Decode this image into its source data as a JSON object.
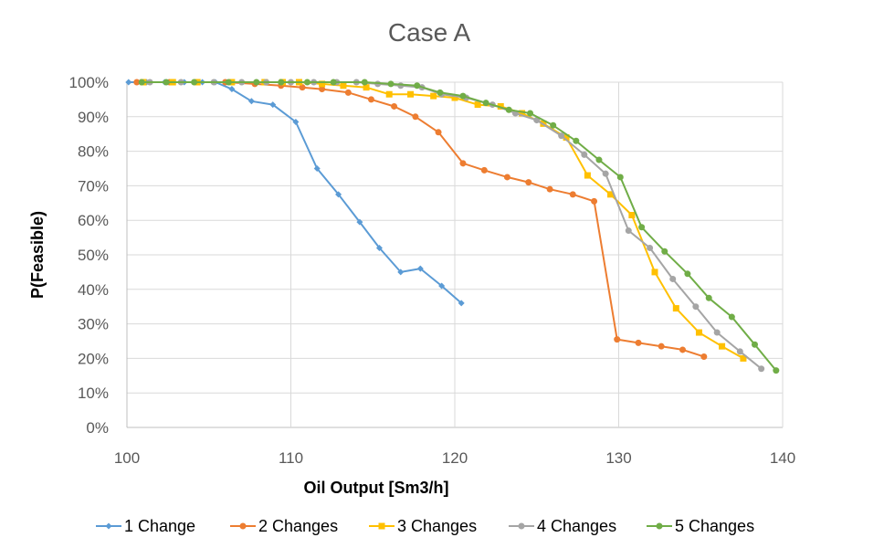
{
  "chart_data": {
    "type": "line",
    "title": "Case A",
    "xlabel": "Oil Output [Sm3/h]",
    "ylabel": "P(Feasible)",
    "xlim": [
      100,
      140
    ],
    "ylim": [
      0,
      100
    ],
    "x_ticks": [
      "100",
      "110",
      "120",
      "130",
      "140"
    ],
    "y_ticks": [
      "0%",
      "10%",
      "20%",
      "30%",
      "40%",
      "50%",
      "60%",
      "70%",
      "80%",
      "90%",
      "100%"
    ],
    "grid": true,
    "legend_position": "bottom",
    "series": [
      {
        "name": "1 Change",
        "color": "#5B9BD5",
        "marker": "diamond",
        "points": [
          [
            100.1,
            100
          ],
          [
            101.2,
            100
          ],
          [
            102.3,
            100
          ],
          [
            103.5,
            100
          ],
          [
            104.6,
            100
          ],
          [
            105.4,
            100
          ],
          [
            106.4,
            98
          ],
          [
            107.6,
            94.5
          ],
          [
            108.9,
            93.5
          ],
          [
            110.3,
            88.5
          ],
          [
            111.6,
            75
          ],
          [
            112.9,
            67.5
          ],
          [
            114.2,
            59.5
          ],
          [
            115.4,
            52
          ],
          [
            116.7,
            45
          ],
          [
            117.9,
            46
          ],
          [
            119.2,
            41
          ],
          [
            120.4,
            36
          ]
        ]
      },
      {
        "name": "2 Changes",
        "color": "#ED7D31",
        "marker": "circle",
        "points": [
          [
            100.6,
            100
          ],
          [
            102.6,
            100
          ],
          [
            104.3,
            100
          ],
          [
            106.0,
            100
          ],
          [
            107.8,
            99.5
          ],
          [
            109.4,
            99
          ],
          [
            110.7,
            98.5
          ],
          [
            111.9,
            98
          ],
          [
            113.5,
            97
          ],
          [
            114.9,
            95
          ],
          [
            116.3,
            93
          ],
          [
            117.6,
            90
          ],
          [
            119.0,
            85.5
          ],
          [
            120.5,
            76.5
          ],
          [
            121.8,
            74.5
          ],
          [
            123.2,
            72.5
          ],
          [
            124.5,
            71
          ],
          [
            125.8,
            69
          ],
          [
            127.2,
            67.5
          ],
          [
            128.5,
            65.5
          ],
          [
            129.9,
            25.5
          ],
          [
            131.2,
            24.5
          ],
          [
            132.6,
            23.5
          ],
          [
            133.9,
            22.5
          ],
          [
            135.2,
            20.5
          ]
        ]
      },
      {
        "name": "3 Changes",
        "color": "#FFC000",
        "marker": "square",
        "points": [
          [
            101.0,
            100
          ],
          [
            102.8,
            100
          ],
          [
            104.3,
            100
          ],
          [
            106.4,
            100
          ],
          [
            108.4,
            100
          ],
          [
            109.5,
            100
          ],
          [
            110.5,
            100
          ],
          [
            111.9,
            99.5
          ],
          [
            113.2,
            99
          ],
          [
            114.6,
            98.5
          ],
          [
            116.0,
            96.5
          ],
          [
            117.3,
            96.5
          ],
          [
            118.7,
            96
          ],
          [
            120.0,
            95.5
          ],
          [
            121.4,
            93.5
          ],
          [
            122.8,
            93
          ],
          [
            124.1,
            91
          ],
          [
            125.4,
            88
          ],
          [
            126.8,
            84
          ],
          [
            128.1,
            73
          ],
          [
            129.5,
            67.5
          ],
          [
            130.8,
            61.5
          ],
          [
            132.2,
            45
          ],
          [
            133.5,
            34.5
          ],
          [
            134.9,
            27.5
          ],
          [
            136.3,
            23.5
          ],
          [
            137.6,
            20
          ]
        ]
      },
      {
        "name": "4 Changes",
        "color": "#A5A5A5",
        "marker": "circle",
        "points": [
          [
            101.4,
            100
          ],
          [
            103.3,
            100
          ],
          [
            105.3,
            100
          ],
          [
            107.0,
            100
          ],
          [
            108.5,
            100
          ],
          [
            110.0,
            100
          ],
          [
            111.4,
            100
          ],
          [
            112.8,
            100
          ],
          [
            114.0,
            100
          ],
          [
            115.3,
            99.5
          ],
          [
            116.7,
            99
          ],
          [
            118.0,
            98.5
          ],
          [
            119.2,
            96.5
          ],
          [
            120.7,
            95.5
          ],
          [
            122.3,
            93.5
          ],
          [
            123.7,
            91
          ],
          [
            125.0,
            89
          ],
          [
            126.5,
            84.5
          ],
          [
            127.9,
            79
          ],
          [
            129.2,
            73.5
          ],
          [
            130.6,
            57
          ],
          [
            131.9,
            52
          ],
          [
            133.3,
            43
          ],
          [
            134.7,
            35
          ],
          [
            136.0,
            27.5
          ],
          [
            137.4,
            22
          ],
          [
            138.7,
            17
          ]
        ]
      },
      {
        "name": "5 Changes",
        "color": "#70AD47",
        "marker": "circle",
        "points": [
          [
            100.9,
            100
          ],
          [
            102.4,
            100
          ],
          [
            104.1,
            100
          ],
          [
            106.2,
            100
          ],
          [
            107.9,
            100
          ],
          [
            109.4,
            100
          ],
          [
            111.0,
            100
          ],
          [
            112.6,
            100
          ],
          [
            114.5,
            100
          ],
          [
            116.1,
            99.5
          ],
          [
            117.7,
            99
          ],
          [
            119.1,
            97
          ],
          [
            120.5,
            96
          ],
          [
            121.9,
            94
          ],
          [
            123.3,
            92
          ],
          [
            124.6,
            91
          ],
          [
            126.0,
            87.5
          ],
          [
            127.4,
            83
          ],
          [
            128.8,
            77.5
          ],
          [
            130.1,
            72.5
          ],
          [
            131.4,
            58
          ],
          [
            132.8,
            51
          ],
          [
            134.2,
            44.5
          ],
          [
            135.5,
            37.5
          ],
          [
            136.9,
            32
          ],
          [
            138.3,
            24
          ],
          [
            139.6,
            16.5
          ]
        ]
      }
    ]
  }
}
